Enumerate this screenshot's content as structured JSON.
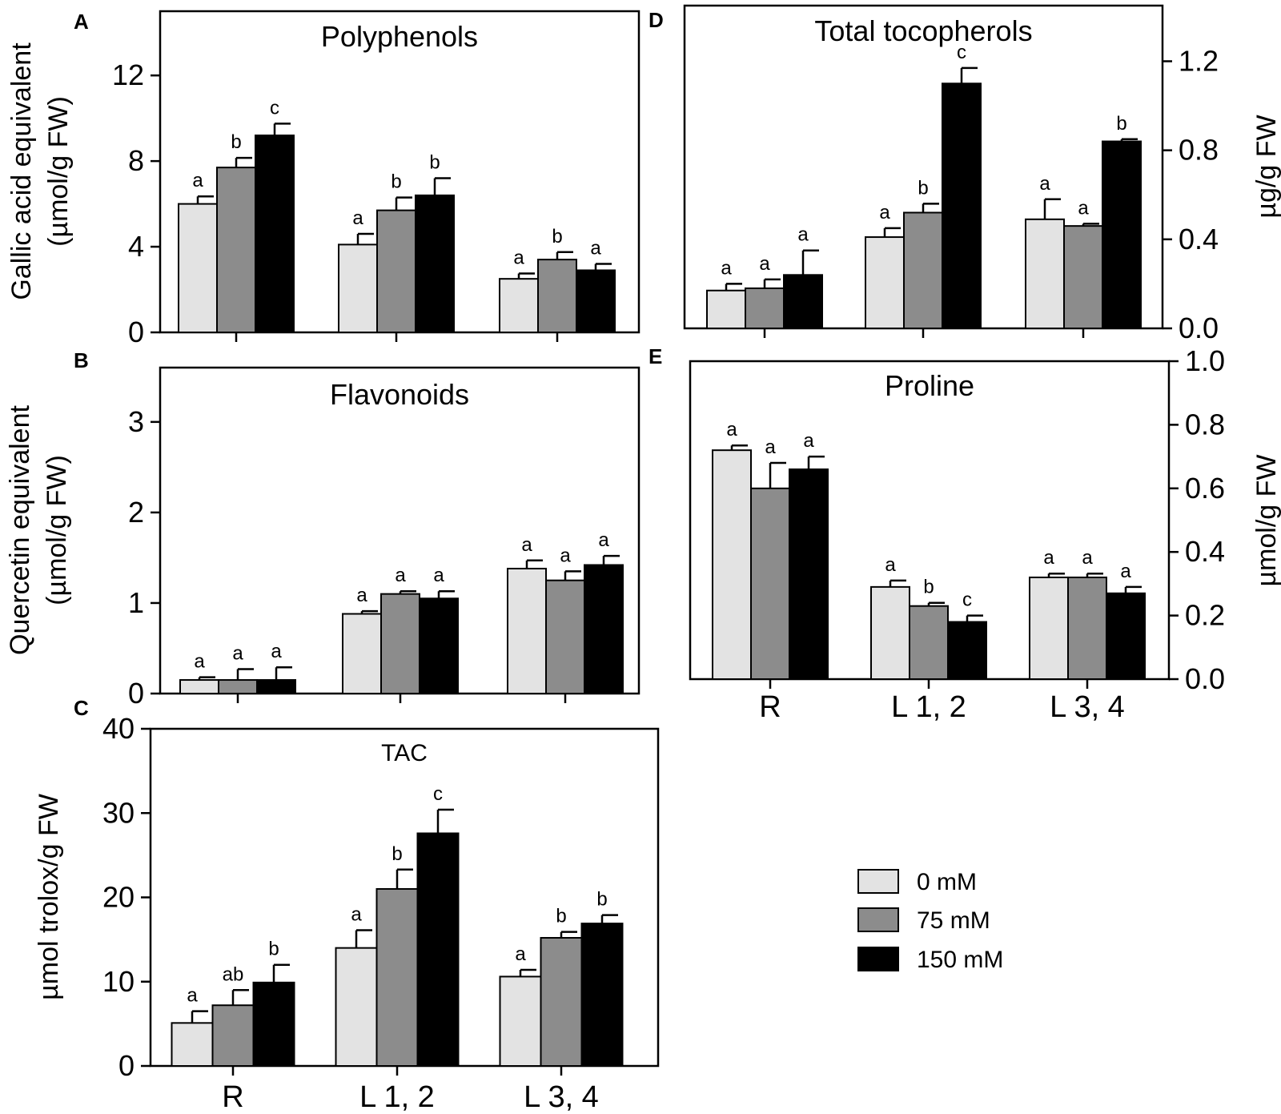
{
  "legend": {
    "items": [
      {
        "label": "0 mM",
        "color": "#e3e3e3"
      },
      {
        "label": "75 mM",
        "color": "#8c8c8c"
      },
      {
        "label": "150 mM",
        "color": "#000000"
      }
    ]
  },
  "chart_data": [
    {
      "panel": "A",
      "type": "bar",
      "title": "Polyphenols",
      "ylabel_lines": [
        "Gallic acid equivalent",
        "(µmol/g FW)"
      ],
      "yaxis_side": "left",
      "ylim": [
        0,
        15
      ],
      "yticks": [
        0,
        4,
        8,
        12
      ],
      "ytick_labels": [
        "0",
        "4",
        "8",
        "12"
      ],
      "categories": [
        "R",
        "L 1, 2",
        "L 3, 4"
      ],
      "show_xlabels": false,
      "series": [
        {
          "name": "0 mM",
          "values": [
            6.0,
            4.1,
            2.5
          ],
          "errors": [
            0.35,
            0.5,
            0.25
          ],
          "letters": [
            "a",
            "a",
            "a"
          ]
        },
        {
          "name": "75 mM",
          "values": [
            7.7,
            5.7,
            3.4
          ],
          "errors": [
            0.45,
            0.6,
            0.35
          ],
          "letters": [
            "b",
            "b",
            "b"
          ]
        },
        {
          "name": "150 mM",
          "values": [
            9.2,
            6.4,
            2.9
          ],
          "errors": [
            0.55,
            0.8,
            0.3
          ],
          "letters": [
            "c",
            "b",
            "a"
          ]
        }
      ]
    },
    {
      "panel": "B",
      "type": "bar",
      "title": "Flavonoids",
      "ylabel_lines": [
        "Quercetin equivalent",
        "(µmol/g FW)"
      ],
      "yaxis_side": "left",
      "ylim": [
        0,
        3.6
      ],
      "yticks": [
        0,
        1,
        2,
        3
      ],
      "ytick_labels": [
        "0",
        "1",
        "2",
        "3"
      ],
      "categories": [
        "R",
        "L 1, 2",
        "L 3, 4"
      ],
      "show_xlabels": false,
      "series": [
        {
          "name": "0 mM",
          "values": [
            0.15,
            0.88,
            1.38
          ],
          "errors": [
            0.03,
            0.03,
            0.09
          ],
          "letters": [
            "a",
            "a",
            "a"
          ]
        },
        {
          "name": "75 mM",
          "values": [
            0.15,
            1.1,
            1.25
          ],
          "errors": [
            0.12,
            0.03,
            0.1
          ],
          "letters": [
            "a",
            "a",
            "a"
          ]
        },
        {
          "name": "150 mM",
          "values": [
            0.15,
            1.05,
            1.42
          ],
          "errors": [
            0.14,
            0.08,
            0.1
          ],
          "letters": [
            "a",
            "a",
            "a"
          ]
        }
      ]
    },
    {
      "panel": "C",
      "type": "bar",
      "title": "TAC",
      "ylabel_lines": [
        "µmol trolox/g FW"
      ],
      "yaxis_side": "left",
      "ylim": [
        0,
        40
      ],
      "yticks": [
        0,
        10,
        20,
        30,
        40
      ],
      "ytick_labels": [
        "0",
        "10",
        "20",
        "30",
        "40"
      ],
      "categories": [
        "R",
        "L 1, 2",
        "L 3, 4"
      ],
      "show_xlabels": true,
      "series": [
        {
          "name": "0 mM",
          "values": [
            5.1,
            14.0,
            10.6
          ],
          "errors": [
            1.4,
            2.1,
            0.8
          ],
          "letters": [
            "a",
            "a",
            "a"
          ]
        },
        {
          "name": "75 mM",
          "values": [
            7.2,
            21.0,
            15.2
          ],
          "errors": [
            1.8,
            2.3,
            0.7
          ],
          "letters": [
            "ab",
            "b",
            "b"
          ]
        },
        {
          "name": "150 mM",
          "values": [
            9.9,
            27.6,
            16.9
          ],
          "errors": [
            2.1,
            2.8,
            1.0
          ],
          "letters": [
            "b",
            "c",
            "b"
          ]
        }
      ]
    },
    {
      "panel": "D",
      "type": "bar",
      "title": "Total tocopherols",
      "ylabel_lines": [
        "µg/g FW"
      ],
      "yaxis_side": "right",
      "ylim": [
        0,
        1.45
      ],
      "yticks": [
        0,
        0.4,
        0.8,
        1.2
      ],
      "ytick_labels": [
        "0.0",
        "0.4",
        "0.8",
        "1.2"
      ],
      "categories": [
        "R",
        "L 1, 2",
        "L 3, 4"
      ],
      "show_xlabels": false,
      "series": [
        {
          "name": "0 mM",
          "values": [
            0.17,
            0.41,
            0.49
          ],
          "errors": [
            0.03,
            0.04,
            0.09
          ],
          "letters": [
            "a",
            "a",
            "a"
          ]
        },
        {
          "name": "75 mM",
          "values": [
            0.18,
            0.52,
            0.46
          ],
          "errors": [
            0.04,
            0.04,
            0.01
          ],
          "letters": [
            "a",
            "b",
            "a"
          ]
        },
        {
          "name": "150 mM",
          "values": [
            0.24,
            1.1,
            0.84
          ],
          "errors": [
            0.11,
            0.07,
            0.01
          ],
          "letters": [
            "a",
            "c",
            "b"
          ]
        }
      ]
    },
    {
      "panel": "E",
      "type": "bar",
      "title": "Proline",
      "ylabel_lines": [
        "µmol/g FW"
      ],
      "yaxis_side": "right",
      "ylim": [
        0,
        1.0
      ],
      "yticks": [
        0,
        0.2,
        0.4,
        0.6,
        0.8,
        1.0
      ],
      "ytick_labels": [
        "0.0",
        "0.2",
        "0.4",
        "0.6",
        "0.8",
        "1.0"
      ],
      "categories": [
        "R",
        "L 1, 2",
        "L 3, 4"
      ],
      "show_xlabels": true,
      "series": [
        {
          "name": "0 mM",
          "values": [
            0.72,
            0.29,
            0.32
          ],
          "errors": [
            0.015,
            0.02,
            0.012
          ],
          "letters": [
            "a",
            "a",
            "a"
          ]
        },
        {
          "name": "75 mM",
          "values": [
            0.6,
            0.23,
            0.32
          ],
          "errors": [
            0.08,
            0.01,
            0.012
          ],
          "letters": [
            "a",
            "b",
            "a"
          ]
        },
        {
          "name": "150 mM",
          "values": [
            0.66,
            0.18,
            0.27
          ],
          "errors": [
            0.04,
            0.02,
            0.02
          ],
          "letters": [
            "a",
            "c",
            "a"
          ]
        }
      ]
    }
  ]
}
